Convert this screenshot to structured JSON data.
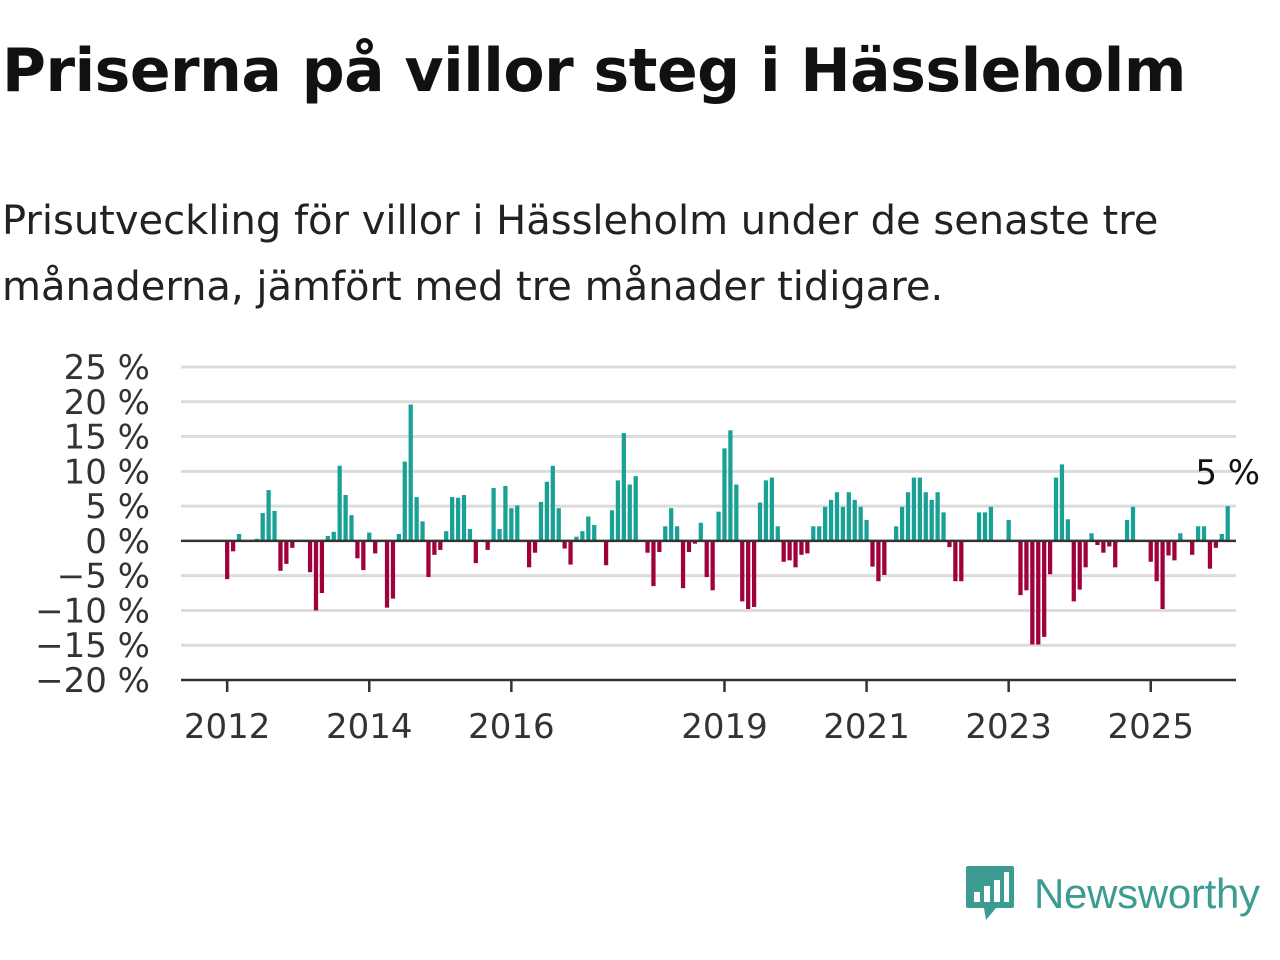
{
  "header": {
    "title": "Priserna på villor steg i Hässleholm",
    "subtitle": "Prisutveckling för villor i Hässleholm under de senaste tre månaderna, jämfört med tre månader tidigare."
  },
  "brand": {
    "name": "Newsworthy",
    "icon": "newsworthy-logo-icon",
    "color": "#3d9c91"
  },
  "colors": {
    "positive": "#1aa195",
    "negative": "#a0003c",
    "grid": "#dcdcdc",
    "axis": "#333333",
    "text": "#333333"
  },
  "chart_data": {
    "type": "bar",
    "title": "Priserna på villor steg i Hässleholm",
    "xlabel": "",
    "ylabel": "",
    "ylim": [
      -20,
      25
    ],
    "xlim": [
      2011.35,
      2026.2
    ],
    "yticks": [
      25,
      20,
      15,
      10,
      5,
      0,
      -5,
      -10,
      -15,
      -20
    ],
    "ytick_labels": [
      "25 %",
      "20 %",
      "15 %",
      "10 %",
      "5 %",
      "0 %",
      "−5 %",
      "−10 %",
      "−15 %",
      "−20 %"
    ],
    "xticks": [
      2012,
      2014,
      2016,
      2019,
      2021,
      2023,
      2025
    ],
    "xtick_labels": [
      "2012",
      "2014",
      "2016",
      "2019",
      "2021",
      "2023",
      "2025"
    ],
    "grid": true,
    "annotation": "5 %",
    "x_start": 2012.0,
    "x_step": 0.0833333,
    "values": [
      -5.5,
      -1.5,
      1,
      0,
      0,
      0.3,
      4,
      7.3,
      4.3,
      -4.3,
      -3.3,
      -1,
      0,
      0,
      -4.5,
      -10,
      -7.5,
      0.7,
      1.3,
      10.8,
      6.6,
      3.7,
      -2.5,
      -4.2,
      1.2,
      -1.8,
      0,
      -9.6,
      -8.3,
      1,
      11.4,
      19.6,
      6.3,
      2.8,
      -5.2,
      -2,
      -1.3,
      1.4,
      6.3,
      6.2,
      6.6,
      1.7,
      -3.2,
      0,
      -1.3,
      7.6,
      1.7,
      7.9,
      4.7,
      5.1,
      0,
      -3.8,
      -1.7,
      5.6,
      8.5,
      10.8,
      4.7,
      -1.1,
      -3.4,
      0.6,
      1.4,
      3.5,
      2.3,
      0,
      -3.5,
      4.4,
      8.7,
      15.5,
      8.1,
      9.3,
      0,
      -1.7,
      -6.5,
      -1.6,
      2.1,
      4.7,
      2.1,
      -6.8,
      -1.6,
      -0.4,
      2.6,
      -5.2,
      -7.1,
      4.2,
      13.3,
      15.9,
      8.1,
      -8.7,
      -9.8,
      -9.5,
      5.5,
      8.7,
      9.1,
      2.1,
      -3,
      -2.8,
      -3.8,
      -2,
      -1.8,
      2.1,
      2.1,
      4.9,
      5.9,
      7,
      4.9,
      7,
      5.9,
      4.9,
      3,
      -3.7,
      -5.8,
      -4.9,
      0,
      2.1,
      4.9,
      7,
      9.1,
      9.1,
      7,
      5.9,
      7,
      4.1,
      -0.9,
      -5.8,
      -5.8,
      0,
      0,
      4.1,
      4.1,
      4.9,
      0,
      0,
      3,
      0,
      -7.8,
      -7.1,
      -14.9,
      -14.9,
      -13.8,
      -4.8,
      9.1,
      11,
      3.1,
      -8.7,
      -7,
      -3.8,
      1.1,
      -0.6,
      -1.7,
      -0.8,
      -3.8,
      0,
      3,
      4.9,
      0,
      0,
      -3,
      -5.8,
      -9.8,
      -2.1,
      -2.8,
      1.1,
      0,
      -2,
      2.1,
      2.1,
      -4,
      -1,
      1,
      5
    ]
  }
}
